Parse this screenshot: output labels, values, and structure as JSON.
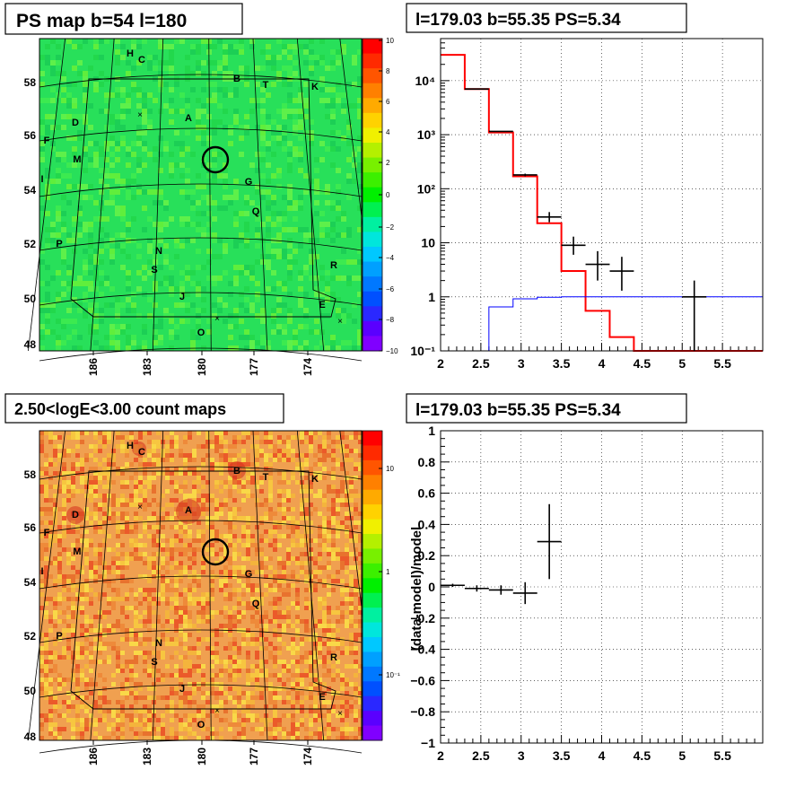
{
  "map_top": {
    "title": "PS map b=54 l=180",
    "colorbar_ticks": [
      "10",
      "8",
      "6",
      "4",
      "2",
      "0",
      "−2",
      "−4",
      "−6",
      "−8",
      "−10"
    ],
    "y_ticks": [
      "58",
      "56",
      "54",
      "52",
      "50",
      "48"
    ],
    "x_ticks": [
      "186",
      "183",
      "180",
      "177",
      "174"
    ],
    "labels": [
      "H",
      "C",
      "B",
      "T",
      "K",
      "A",
      "D",
      "F",
      "M",
      "I",
      "G",
      "Q",
      "P",
      "N",
      "R",
      "S",
      "J",
      "E",
      "O"
    ],
    "bg_color": "#28e05a"
  },
  "map_bottom": {
    "title": "2.50<logE<3.00 count maps",
    "colorbar_ticks": [
      "10",
      "1",
      "10⁻¹"
    ],
    "y_ticks": [
      "58",
      "56",
      "54",
      "52",
      "50",
      "48"
    ],
    "x_ticks": [
      "186",
      "183",
      "180",
      "177",
      "174"
    ],
    "labels": [
      "H",
      "C",
      "B",
      "T",
      "K",
      "A",
      "D",
      "F",
      "M",
      "I",
      "G",
      "Q",
      "P",
      "N",
      "R",
      "S",
      "J",
      "E",
      "O"
    ],
    "bg_color": "#f0a050"
  },
  "chart_data": [
    {
      "type": "line",
      "title": "l=179.03 b=55.35 PS=5.34",
      "log_y": true,
      "xlim": [
        2,
        6
      ],
      "ylim": [
        0.1,
        60000
      ],
      "x_ticks": [
        "2",
        "2.5",
        "3",
        "3.5",
        "4",
        "4.5",
        "5",
        "5.5"
      ],
      "y_ticks": [
        "10⁴",
        "10³",
        "10²",
        "10",
        "1",
        "10⁻¹"
      ],
      "grid": true,
      "series": [
        {
          "color": "#ff0000",
          "style": "step",
          "edges": [
            2.0,
            2.3,
            2.6,
            2.9,
            3.2,
            3.5,
            3.8,
            4.1,
            4.4,
            6.0
          ],
          "values": [
            30000,
            7000,
            1100,
            170,
            23,
            3,
            0.55,
            0.18,
            0.1
          ]
        },
        {
          "color": "#0000ff",
          "style": "step",
          "edges": [
            2.3,
            2.6,
            2.9,
            3.2,
            3.5,
            6.0
          ],
          "values": [
            0.1,
            0.65,
            0.92,
            0.98,
            1.0
          ]
        },
        {
          "color": "#000000",
          "style": "errorbar",
          "x": [
            2.45,
            2.75,
            3.05,
            3.35,
            3.65,
            3.95,
            4.25,
            5.15
          ],
          "y": [
            7000,
            1150,
            180,
            30,
            9,
            4,
            3,
            1
          ],
          "xerr": [
            0.15,
            0.15,
            0.15,
            0.15,
            0.15,
            0.15,
            0.15,
            0.15
          ],
          "ylo": [
            6900,
            1130,
            170,
            24,
            6,
            2,
            1.3,
            0.1
          ],
          "yhi": [
            7100,
            1170,
            190,
            37,
            13,
            7,
            5.5,
            2
          ]
        }
      ]
    },
    {
      "type": "scatter",
      "title": "l=179.03 b=55.35 PS=5.34",
      "xlim": [
        2,
        6
      ],
      "ylim": [
        -1,
        1
      ],
      "ylabel": "(data-model)/model",
      "x_ticks": [
        "2",
        "2.5",
        "3",
        "3.5",
        "4",
        "4.5",
        "5",
        "5.5"
      ],
      "y_ticks": [
        "1",
        "0.8",
        "0.6",
        "0.4",
        "0.2",
        "0",
        "−0.2",
        "−0.4",
        "−0.6",
        "−0.8",
        "−1"
      ],
      "grid": true,
      "series": [
        {
          "color": "#000000",
          "style": "errorbar",
          "x": [
            2.15,
            2.45,
            2.75,
            3.05,
            3.35
          ],
          "y": [
            0.01,
            -0.01,
            -0.02,
            -0.04,
            0.29
          ],
          "xerr": [
            0.15,
            0.15,
            0.15,
            0.15,
            0.15
          ],
          "yerr": [
            0.01,
            0.02,
            0.03,
            0.07,
            0.24
          ]
        }
      ]
    }
  ]
}
